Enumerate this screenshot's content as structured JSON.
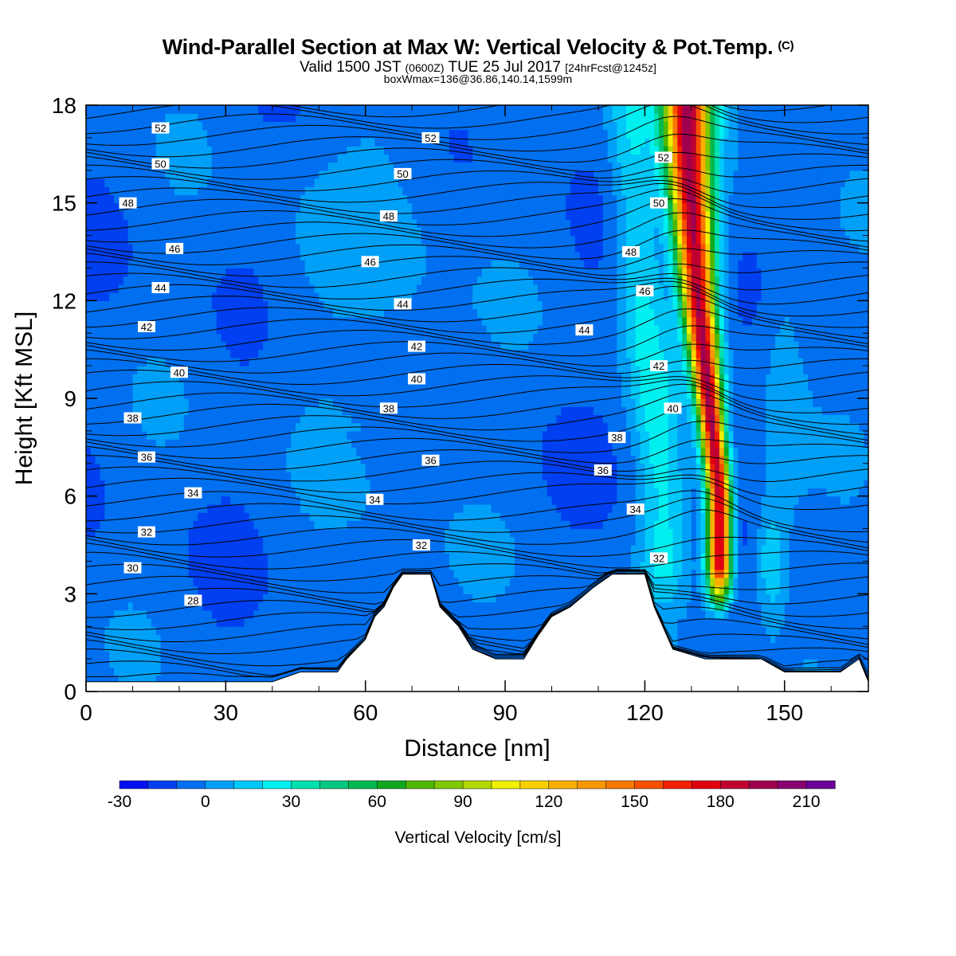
{
  "header": {
    "title": "Wind-Parallel Section at Max W: Vertical Velocity & Pot.Temp.",
    "copyright": "(C)",
    "valid_prefix": "Valid 1500 JST",
    "valid_zulu": "(0600Z)",
    "valid_date": "TUE 25 Jul 2017",
    "forecast": "[24hrFcst@1245z]",
    "box_info": "boxWmax=136@36.86,140.14,1599m"
  },
  "chart_data": {
    "type": "heatmap",
    "xlabel": "Distance [nm]",
    "ylabel": "Height [Kft MSL]",
    "xlim": [
      0,
      168
    ],
    "ylim": [
      0,
      18
    ],
    "x_ticks": [
      "0",
      "30",
      "60",
      "90",
      "120",
      "150"
    ],
    "y_ticks": [
      "0",
      "3",
      "6",
      "9",
      "12",
      "15",
      "18"
    ],
    "colorbar": {
      "label": "Vertical Velocity [cm/s]",
      "tick_labels": [
        "-30",
        "0",
        "30",
        "60",
        "90",
        "120",
        "150",
        "180",
        "210"
      ],
      "levels_start": -30,
      "level_step": 10,
      "colors": [
        "#0010f0",
        "#0040f0",
        "#0070f0",
        "#00a0f8",
        "#00c8f8",
        "#00f0f0",
        "#00e0b0",
        "#00c880",
        "#00b850",
        "#10a820",
        "#50b800",
        "#80c800",
        "#b0d800",
        "#f0f000",
        "#f8d000",
        "#f8b000",
        "#f89800",
        "#f87800",
        "#f85000",
        "#f02000",
        "#e00010",
        "#c00030",
        "#a00050",
        "#880070",
        "#6a0098"
      ]
    },
    "updraft_core": {
      "max_value": 136,
      "track": [
        [
          136,
          2.8
        ],
        [
          136,
          4.5
        ],
        [
          136,
          6.0
        ],
        [
          134.5,
          8.0
        ],
        [
          133,
          10.0
        ],
        [
          131.5,
          12.0
        ],
        [
          130.5,
          14.0
        ],
        [
          129.5,
          16.0
        ],
        [
          129,
          18.0
        ]
      ]
    },
    "terrain_kft": [
      [
        0,
        0.3
      ],
      [
        40,
        0.3
      ],
      [
        46,
        0.6
      ],
      [
        54,
        0.6
      ],
      [
        56,
        1.0
      ],
      [
        58,
        1.3
      ],
      [
        60,
        1.6
      ],
      [
        62,
        2.3
      ],
      [
        64,
        2.6
      ],
      [
        66,
        3.2
      ],
      [
        68,
        3.6
      ],
      [
        74,
        3.6
      ],
      [
        76,
        2.6
      ],
      [
        80,
        2.0
      ],
      [
        83,
        1.3
      ],
      [
        88,
        1.0
      ],
      [
        94,
        1.0
      ],
      [
        97,
        1.7
      ],
      [
        100,
        2.3
      ],
      [
        104,
        2.6
      ],
      [
        109,
        3.2
      ],
      [
        113,
        3.6
      ],
      [
        120,
        3.6
      ],
      [
        122,
        2.6
      ],
      [
        126,
        1.3
      ],
      [
        133,
        1.0
      ],
      [
        145,
        1.0
      ],
      [
        150,
        0.6
      ],
      [
        162,
        0.6
      ],
      [
        166,
        1.0
      ],
      [
        168,
        0.3
      ]
    ],
    "theta_contours": [
      {
        "value": "28",
        "x": 23,
        "y": 2.8
      },
      {
        "value": "30",
        "x": 10,
        "y": 3.8
      },
      {
        "value": "32",
        "x": 13,
        "y": 4.9
      },
      {
        "value": "32",
        "x": 72,
        "y": 4.5
      },
      {
        "value": "32",
        "x": 123,
        "y": 4.1
      },
      {
        "value": "34",
        "x": 23,
        "y": 6.1
      },
      {
        "value": "34",
        "x": 62,
        "y": 5.9
      },
      {
        "value": "34",
        "x": 118,
        "y": 5.6
      },
      {
        "value": "36",
        "x": 13,
        "y": 7.2
      },
      {
        "value": "36",
        "x": 74,
        "y": 7.1
      },
      {
        "value": "36",
        "x": 111,
        "y": 6.8
      },
      {
        "value": "38",
        "x": 10,
        "y": 8.4
      },
      {
        "value": "38",
        "x": 65,
        "y": 8.7
      },
      {
        "value": "38",
        "x": 114,
        "y": 7.8
      },
      {
        "value": "40",
        "x": 20,
        "y": 9.8
      },
      {
        "value": "40",
        "x": 71,
        "y": 9.6
      },
      {
        "value": "40",
        "x": 126,
        "y": 8.7
      },
      {
        "value": "42",
        "x": 13,
        "y": 11.2
      },
      {
        "value": "42",
        "x": 71,
        "y": 10.6
      },
      {
        "value": "42",
        "x": 123,
        "y": 10.0
      },
      {
        "value": "44",
        "x": 16,
        "y": 12.4
      },
      {
        "value": "44",
        "x": 68,
        "y": 11.9
      },
      {
        "value": "44",
        "x": 107,
        "y": 11.1
      },
      {
        "value": "46",
        "x": 19,
        "y": 13.6
      },
      {
        "value": "46",
        "x": 61,
        "y": 13.2
      },
      {
        "value": "46",
        "x": 120,
        "y": 12.3
      },
      {
        "value": "48",
        "x": 9,
        "y": 15.0
      },
      {
        "value": "48",
        "x": 65,
        "y": 14.6
      },
      {
        "value": "48",
        "x": 117,
        "y": 13.5
      },
      {
        "value": "50",
        "x": 16,
        "y": 16.2
      },
      {
        "value": "50",
        "x": 68,
        "y": 15.9
      },
      {
        "value": "50",
        "x": 123,
        "y": 15.0
      },
      {
        "value": "52",
        "x": 16,
        "y": 17.3
      },
      {
        "value": "52",
        "x": 74,
        "y": 17.0
      },
      {
        "value": "52",
        "x": 124,
        "y": 16.4
      }
    ]
  }
}
